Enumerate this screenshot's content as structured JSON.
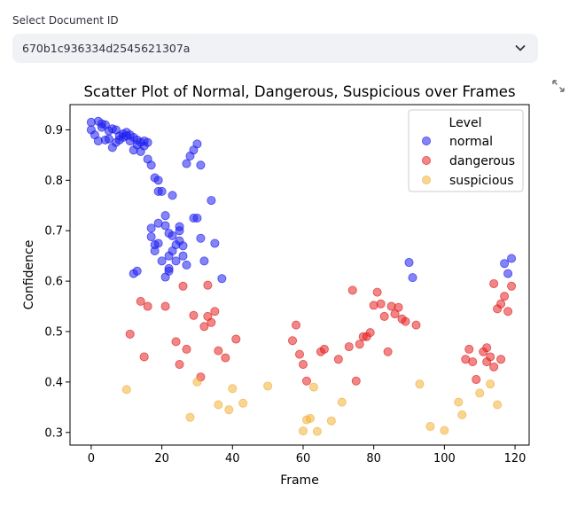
{
  "selector": {
    "label": "Select Document ID",
    "value": "670b1c936334d2545621307a",
    "icon": "chevron-down-icon"
  },
  "toolbar": {
    "fullscreen_icon": "expand-icon"
  },
  "colors": {
    "normal": "#1f1ff0",
    "dangerous": "#e32222",
    "suspicious": "#f2b23a"
  },
  "chart_data": {
    "type": "scatter",
    "title": "Scatter Plot of Normal, Dangerous, Suspicious over Frames",
    "xlabel": "Frame",
    "ylabel": "Confidence",
    "xlim": [
      -6,
      124
    ],
    "ylim": [
      0.275,
      0.95
    ],
    "xticks": [
      0,
      20,
      40,
      60,
      80,
      100,
      120
    ],
    "yticks": [
      0.3,
      0.4,
      0.5,
      0.6,
      0.7,
      0.8,
      0.9
    ],
    "grid": false,
    "legend": {
      "title": "Level",
      "position": "top-right"
    },
    "series": [
      {
        "name": "normal",
        "points": [
          [
            0,
            0.915
          ],
          [
            0,
            0.9
          ],
          [
            1,
            0.89
          ],
          [
            2,
            0.878
          ],
          [
            2,
            0.917
          ],
          [
            3,
            0.905
          ],
          [
            3,
            0.912
          ],
          [
            4,
            0.88
          ],
          [
            4,
            0.91
          ],
          [
            5,
            0.882
          ],
          [
            5,
            0.898
          ],
          [
            6,
            0.902
          ],
          [
            6,
            0.865
          ],
          [
            7,
            0.875
          ],
          [
            7,
            0.9
          ],
          [
            8,
            0.88
          ],
          [
            8,
            0.888
          ],
          [
            9,
            0.885
          ],
          [
            9,
            0.892
          ],
          [
            10,
            0.888
          ],
          [
            10,
            0.895
          ],
          [
            11,
            0.89
          ],
          [
            11,
            0.878
          ],
          [
            12,
            0.885
          ],
          [
            12,
            0.86
          ],
          [
            13,
            0.87
          ],
          [
            13,
            0.88
          ],
          [
            14,
            0.875
          ],
          [
            14,
            0.857
          ],
          [
            15,
            0.868
          ],
          [
            15,
            0.878
          ],
          [
            16,
            0.842
          ],
          [
            16,
            0.875
          ],
          [
            17,
            0.83
          ],
          [
            18,
            0.805
          ],
          [
            19,
            0.8
          ],
          [
            19,
            0.778
          ],
          [
            20,
            0.778
          ],
          [
            21,
            0.73
          ],
          [
            22,
            0.695
          ],
          [
            23,
            0.77
          ],
          [
            25,
            0.708
          ],
          [
            27,
            0.833
          ],
          [
            28,
            0.848
          ],
          [
            29,
            0.86
          ],
          [
            30,
            0.872
          ],
          [
            31,
            0.83
          ],
          [
            34,
            0.76
          ],
          [
            12,
            0.615
          ],
          [
            13,
            0.62
          ],
          [
            17,
            0.705
          ],
          [
            17,
            0.688
          ],
          [
            18,
            0.66
          ],
          [
            18,
            0.672
          ],
          [
            19,
            0.715
          ],
          [
            19,
            0.675
          ],
          [
            20,
            0.64
          ],
          [
            21,
            0.71
          ],
          [
            21,
            0.608
          ],
          [
            22,
            0.62
          ],
          [
            22,
            0.625
          ],
          [
            22,
            0.65
          ],
          [
            23,
            0.69
          ],
          [
            23,
            0.66
          ],
          [
            24,
            0.64
          ],
          [
            24,
            0.672
          ],
          [
            25,
            0.68
          ],
          [
            25,
            0.7
          ],
          [
            26,
            0.65
          ],
          [
            26,
            0.67
          ],
          [
            27,
            0.632
          ],
          [
            29,
            0.725
          ],
          [
            30,
            0.725
          ],
          [
            31,
            0.685
          ],
          [
            32,
            0.64
          ],
          [
            35,
            0.675
          ],
          [
            37,
            0.605
          ],
          [
            90,
            0.637
          ],
          [
            91,
            0.607
          ],
          [
            117,
            0.635
          ],
          [
            118,
            0.615
          ],
          [
            119,
            0.645
          ]
        ]
      },
      {
        "name": "dangerous",
        "points": [
          [
            11,
            0.495
          ],
          [
            14,
            0.56
          ],
          [
            15,
            0.45
          ],
          [
            16,
            0.55
          ],
          [
            21,
            0.55
          ],
          [
            24,
            0.48
          ],
          [
            25,
            0.435
          ],
          [
            26,
            0.59
          ],
          [
            27,
            0.465
          ],
          [
            29,
            0.532
          ],
          [
            31,
            0.41
          ],
          [
            32,
            0.51
          ],
          [
            33,
            0.592
          ],
          [
            33,
            0.53
          ],
          [
            34,
            0.518
          ],
          [
            35,
            0.54
          ],
          [
            36,
            0.462
          ],
          [
            38,
            0.448
          ],
          [
            41,
            0.485
          ],
          [
            57,
            0.482
          ],
          [
            58,
            0.513
          ],
          [
            59,
            0.455
          ],
          [
            60,
            0.435
          ],
          [
            61,
            0.402
          ],
          [
            65,
            0.46
          ],
          [
            66,
            0.465
          ],
          [
            70,
            0.445
          ],
          [
            73,
            0.47
          ],
          [
            74,
            0.582
          ],
          [
            75,
            0.402
          ],
          [
            76,
            0.475
          ],
          [
            77,
            0.49
          ],
          [
            78,
            0.49
          ],
          [
            79,
            0.498
          ],
          [
            80,
            0.552
          ],
          [
            81,
            0.578
          ],
          [
            82,
            0.555
          ],
          [
            83,
            0.53
          ],
          [
            84,
            0.46
          ],
          [
            85,
            0.55
          ],
          [
            86,
            0.535
          ],
          [
            87,
            0.548
          ],
          [
            88,
            0.525
          ],
          [
            89,
            0.52
          ],
          [
            92,
            0.513
          ],
          [
            106,
            0.445
          ],
          [
            107,
            0.465
          ],
          [
            108,
            0.44
          ],
          [
            109,
            0.405
          ],
          [
            111,
            0.46
          ],
          [
            112,
            0.468
          ],
          [
            112,
            0.44
          ],
          [
            113,
            0.45
          ],
          [
            114,
            0.43
          ],
          [
            114,
            0.595
          ],
          [
            115,
            0.545
          ],
          [
            116,
            0.555
          ],
          [
            116,
            0.445
          ],
          [
            117,
            0.57
          ],
          [
            118,
            0.54
          ],
          [
            119,
            0.59
          ]
        ]
      },
      {
        "name": "suspicious",
        "points": [
          [
            10,
            0.385
          ],
          [
            28,
            0.33
          ],
          [
            30,
            0.4
          ],
          [
            36,
            0.355
          ],
          [
            39,
            0.345
          ],
          [
            40,
            0.387
          ],
          [
            43,
            0.358
          ],
          [
            50,
            0.392
          ],
          [
            60,
            0.303
          ],
          [
            61,
            0.325
          ],
          [
            62,
            0.328
          ],
          [
            63,
            0.39
          ],
          [
            64,
            0.302
          ],
          [
            68,
            0.323
          ],
          [
            71,
            0.36
          ],
          [
            93,
            0.396
          ],
          [
            96,
            0.312
          ],
          [
            100,
            0.304
          ],
          [
            104,
            0.36
          ],
          [
            105,
            0.335
          ],
          [
            110,
            0.378
          ],
          [
            113,
            0.396
          ],
          [
            115,
            0.355
          ]
        ]
      }
    ]
  }
}
